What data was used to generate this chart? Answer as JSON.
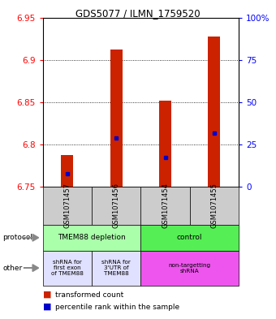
{
  "title": "GDS5077 / ILMN_1759520",
  "samples": [
    "GSM1071457",
    "GSM1071456",
    "GSM1071454",
    "GSM1071455"
  ],
  "bar_bottoms": [
    6.75,
    6.75,
    6.75,
    6.75
  ],
  "bar_tops": [
    6.787,
    6.912,
    6.852,
    6.928
  ],
  "blue_marks": [
    6.765,
    6.808,
    6.784,
    6.813
  ],
  "ylim": [
    6.75,
    6.95
  ],
  "yticks_left": [
    6.75,
    6.8,
    6.85,
    6.9,
    6.95
  ],
  "yticks_right": [
    0,
    25,
    50,
    75,
    100
  ],
  "ytick_labels_left": [
    "6.75",
    "6.8",
    "6.85",
    "6.9",
    "6.95"
  ],
  "ytick_labels_right": [
    "0",
    "25",
    "50",
    "75",
    "100%"
  ],
  "bar_color": "#cc2200",
  "blue_color": "#0000cc",
  "protocol_labels": [
    "TMEM88 depletion",
    "control"
  ],
  "other_labels": [
    "shRNA for\nfirst exon\nof TMEM88",
    "shRNA for\n3'UTR of\nTMEM88",
    "non-targetting\nshRNA"
  ],
  "sample_bg_color": "#cccccc",
  "protocol_color_1": "#aaffaa",
  "protocol_color_2": "#55ee55",
  "other_color_light": "#e0e0ff",
  "other_color_magenta": "#ee55ee",
  "legend_red": "transformed count",
  "legend_blue": "percentile rank within the sample",
  "bar_width": 0.25
}
